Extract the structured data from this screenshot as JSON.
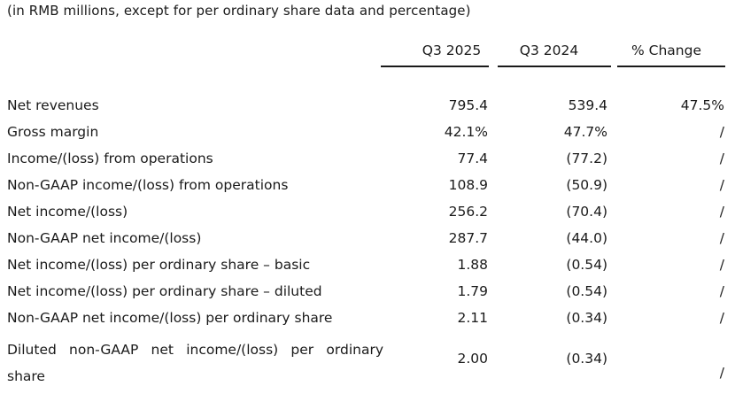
{
  "caption": "(in RMB millions, except for per ordinary share data and percentage)",
  "columns": [
    "Q3 2025",
    "Q3 2024",
    "% Change"
  ],
  "rows": [
    {
      "label": "Net revenues",
      "q3_2025": "795.4",
      "q3_2024": "539.4",
      "change": "47.5%"
    },
    {
      "label": "Gross margin",
      "q3_2025": "42.1%",
      "q3_2024": "47.7%",
      "change": "/"
    },
    {
      "label": "Income/(loss) from operations",
      "q3_2025": "77.4",
      "q3_2024": "(77.2)",
      "change": "/"
    },
    {
      "label": "Non-GAAP income/(loss) from operations",
      "q3_2025": "108.9",
      "q3_2024": "(50.9)",
      "change": "/"
    },
    {
      "label": "Net income/(loss)",
      "q3_2025": "256.2",
      "q3_2024": "(70.4)",
      "change": "/"
    },
    {
      "label": "Non-GAAP net income/(loss)",
      "q3_2025": "287.7",
      "q3_2024": "(44.0)",
      "change": "/"
    },
    {
      "label": "Net income/(loss) per ordinary share – basic",
      "q3_2025": "1.88",
      "q3_2024": "(0.54)",
      "change": "/"
    },
    {
      "label": "Net income/(loss) per ordinary share – diluted",
      "q3_2025": "1.79",
      "q3_2024": "(0.54)",
      "change": "/"
    },
    {
      "label": "Non-GAAP net income/(loss) per ordinary share",
      "q3_2025": "2.11",
      "q3_2024": "(0.34)",
      "change": "/"
    },
    {
      "label": "Diluted non-GAAP net income/(loss) per ordinary share",
      "q3_2025": "2.00",
      "q3_2024": "(0.34)",
      "change": "/"
    }
  ]
}
